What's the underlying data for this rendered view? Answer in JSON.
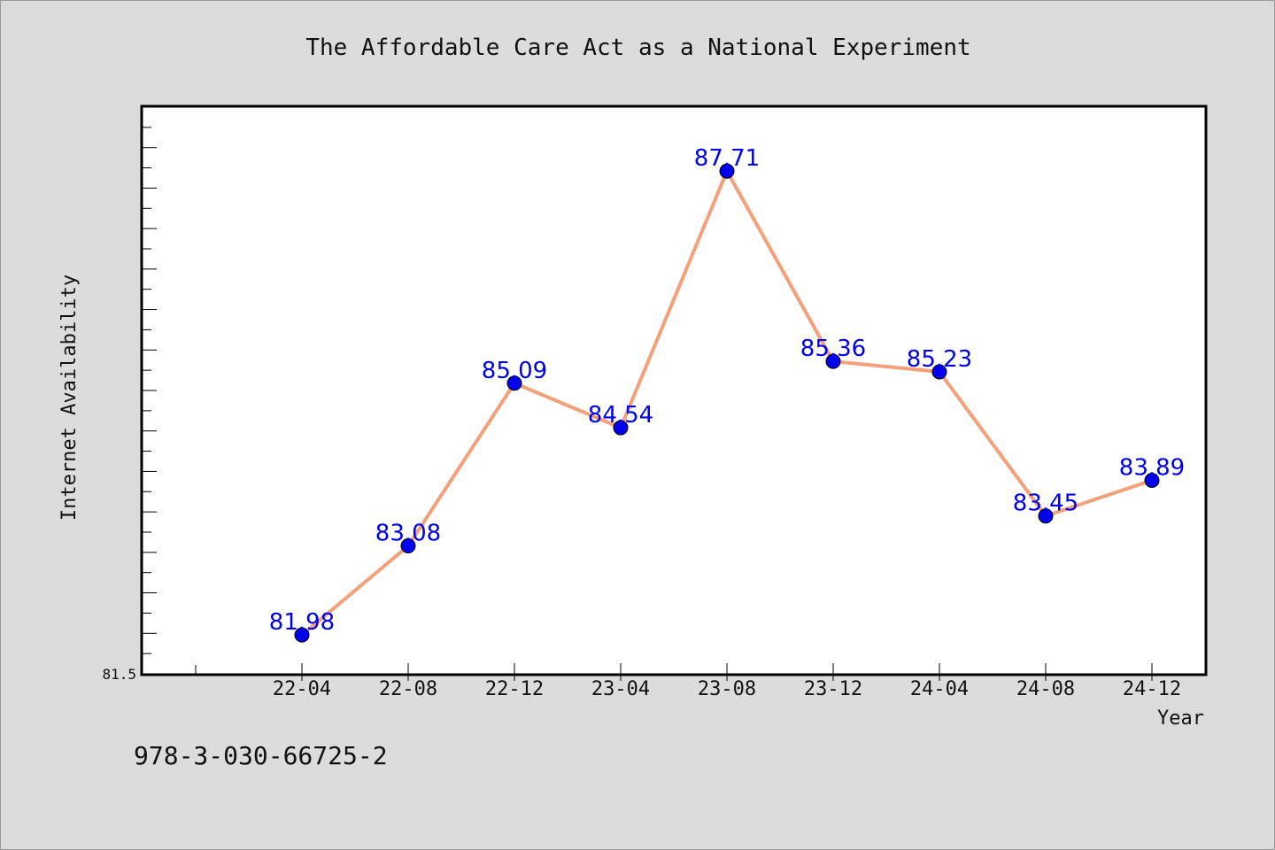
{
  "chart_data": {
    "type": "line",
    "title": "The Affordable Care Act as a National Experiment",
    "xlabel": "Year",
    "ylabel": "Internet Availability",
    "categories": [
      "22-04",
      "22-08",
      "22-12",
      "23-04",
      "23-08",
      "23-12",
      "24-04",
      "24-08",
      "24-12"
    ],
    "series": [
      {
        "values": [
          81.98,
          83.08,
          85.09,
          84.54,
          87.71,
          85.36,
          85.23,
          83.45,
          83.89
        ]
      }
    ],
    "data_labels": [
      "81.98",
      "83.08",
      "85.09",
      "84.54",
      "87.71",
      "85.36",
      "85.23",
      "83.45",
      "83.89"
    ],
    "ylim": [
      81.5,
      88.5
    ],
    "y_tick_label": "81.5",
    "grid": false,
    "line_color": "#f4a07a",
    "marker_color": "#0000ee",
    "label_color": "#0000ee",
    "background": "#dcdcdc",
    "plot_background": "#ffffff"
  },
  "footer": {
    "isbn": "978-3-030-66725-2"
  }
}
